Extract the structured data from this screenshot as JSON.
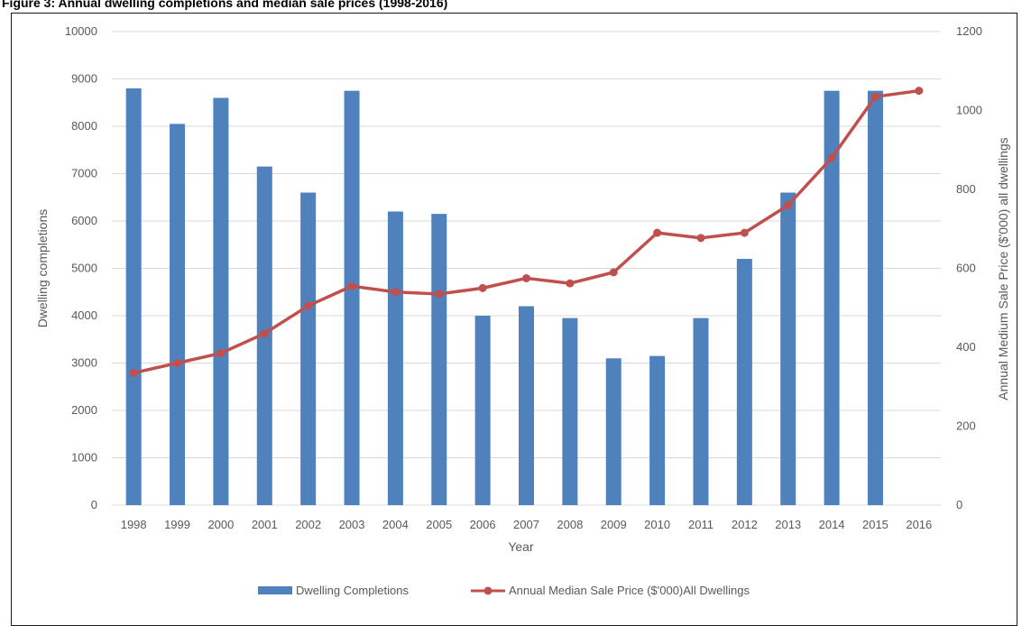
{
  "figure_title": "Figure 3: Annual dwelling completions and median sale prices (1998-2016)",
  "chart_data": {
    "type": "bar",
    "categories": [
      "1998",
      "1999",
      "2000",
      "2001",
      "2002",
      "2003",
      "2004",
      "2005",
      "2006",
      "2007",
      "2008",
      "2009",
      "2010",
      "2011",
      "2012",
      "2013",
      "2014",
      "2015",
      "2016"
    ],
    "series": [
      {
        "name": "Dwelling Completions",
        "type": "bar",
        "axis": "left",
        "color": "#4f81bd",
        "values": [
          8800,
          8050,
          8600,
          7150,
          6600,
          8750,
          6200,
          6150,
          4000,
          4200,
          3950,
          3100,
          3150,
          3950,
          5200,
          6600,
          8750,
          8750,
          null
        ]
      },
      {
        "name": "Annual Median Sale Price ($'000)All Dwellings",
        "type": "line",
        "axis": "right",
        "color": "#c0504d",
        "values": [
          335,
          360,
          385,
          435,
          505,
          555,
          540,
          535,
          550,
          575,
          562,
          590,
          690,
          677,
          690,
          760,
          880,
          1035,
          1050
        ]
      }
    ],
    "xlabel": "Year",
    "ylabel": "Dwelling completions",
    "y2label": "Annual Medium Sale Price ($'000) all dwellings",
    "ylim": [
      0,
      10000
    ],
    "y2lim": [
      0,
      1200
    ],
    "yticks": [
      0,
      1000,
      2000,
      3000,
      4000,
      5000,
      6000,
      7000,
      8000,
      9000,
      10000
    ],
    "y2ticks": [
      0,
      200,
      400,
      600,
      800,
      1000,
      1200
    ],
    "grid": true,
    "legend": "bottom-center"
  }
}
